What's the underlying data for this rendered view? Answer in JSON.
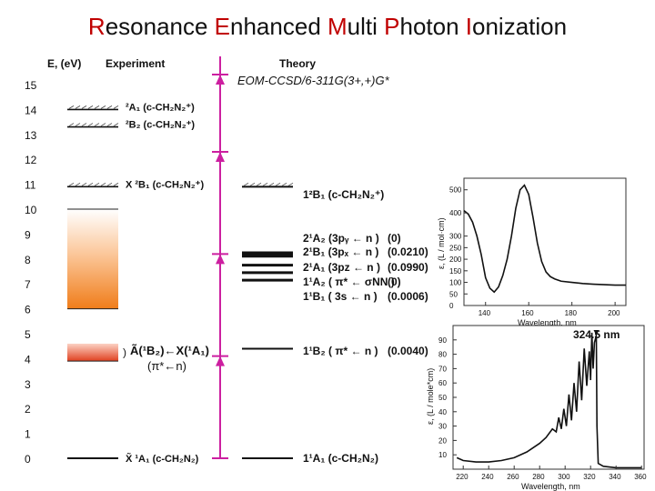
{
  "title": {
    "words": [
      {
        "cap": "R",
        "rest": "esonance "
      },
      {
        "cap": "E",
        "rest": "nhanced "
      },
      {
        "cap": "M",
        "rest": "ulti "
      },
      {
        "cap": "P",
        "rest": "hoton "
      },
      {
        "cap": "I",
        "rest": "onization"
      }
    ],
    "cap_color": "#c00000"
  },
  "axis": {
    "label": "E, (eV)",
    "ticks": [
      "0",
      "1",
      "2",
      "3",
      "4",
      "5",
      "6",
      "7",
      "8",
      "9",
      "10",
      "11",
      "12",
      "13",
      "14",
      "15"
    ]
  },
  "experiment": {
    "header": "Experiment",
    "states": [
      {
        "label": "²A₁ (c-CH₂N₂⁺)",
        "energy": 14.0,
        "dashed": true
      },
      {
        "label": "²B₂ (c-CH₂N₂⁺)",
        "energy": 13.3,
        "dashed": true
      },
      {
        "label": "X ²B₁ (c-CH₂N₂⁺)",
        "energy": 10.9,
        "dashed": true
      },
      {
        "label": "X̃ ¹A₁ (c-CH₂N₂)",
        "energy": 0.0,
        "dashed": false
      }
    ],
    "band_upper": {
      "from": 6.0,
      "to": 10.0,
      "color": "#f07d1a"
    },
    "band_lower": {
      "from": 3.9,
      "to": 4.6,
      "color": "#e04020"
    },
    "transition_label_1": "Ã(¹B₂)←X(¹A₁)",
    "transition_label_2": "(π*←n)"
  },
  "photon_arrows": {
    "color": "#cc1fa0",
    "steps": [
      0,
      4.1,
      8.2,
      12.3,
      15.4
    ]
  },
  "theory": {
    "header": "Theory",
    "method": "EOM-CCSD/6-311G(3+,+)G*",
    "states": [
      {
        "label": "1²B₁ (c-CH₂N₂⁺)",
        "energy": 10.9,
        "osc": "",
        "dashed": true
      },
      {
        "label": "2¹A₂ (3p — n)",
        "energy": 8.25,
        "osc": "(0)",
        "dashed": false
      },
      {
        "label": "2¹B₁ (3p — n)",
        "energy": 8.15,
        "osc": "(0.0210);",
        "dashed": false
      },
      {
        "label": "2¹A₁ (3p — n)",
        "energy": 7.75,
        "osc": "(0.0990);",
        "dashed": false
      },
      {
        "label": "1¹A₂ (π* — σNN)",
        "energy": 7.45,
        "osc": "(0)",
        "dashed": false
      },
      {
        "label": "1¹B₁ (3s — n)",
        "energy": 7.15,
        "osc": "(0.0006);",
        "dashed": false
      },
      {
        "label": "1¹B₂ (π* ← n)",
        "energy": 4.4,
        "osc": "(0.0040)",
        "dashed": false
      },
      {
        "label": "1¹A₁ (c-CH₂N₂)",
        "energy": 0.0,
        "osc": "",
        "dashed": false
      }
    ],
    "row_labels": [
      {
        "state": "1²B₁ (c-CH₂N₂⁺)",
        "osc": ""
      },
      {
        "state": "2¹A₂ (3pᵧ ← n )",
        "osc": "(0)"
      },
      {
        "state": "2¹B₁ (3pₓ ← n )",
        "osc": "(0.0210)"
      },
      {
        "state": "2¹A₁ (3pz ← n )",
        "osc": "(0.0990)"
      },
      {
        "state": "1¹A₂ ( π* ← σNN )",
        "osc": "(0)"
      },
      {
        "state": "1¹B₁ ( 3s ← n )",
        "osc": "(0.0006)"
      },
      {
        "state": "1¹B₂ ( π* ← n )",
        "osc": "(0.0040)"
      },
      {
        "state": "1¹A₁ (c-CH₂N₂)",
        "osc": ""
      }
    ]
  },
  "spectrum_top": {
    "xlabel": "Wavelength, nm",
    "ylabel": "ε, (L / mol·cm)",
    "xticks": [
      "140",
      "160",
      "180",
      "200"
    ],
    "yticks": [
      "0",
      "50",
      "100",
      "150",
      "200",
      "250",
      "300",
      "400",
      "500"
    ],
    "curve": [
      [
        130,
        410
      ],
      [
        132,
        395
      ],
      [
        134,
        360
      ],
      [
        136,
        300
      ],
      [
        138,
        220
      ],
      [
        140,
        120
      ],
      [
        142,
        75
      ],
      [
        144,
        58
      ],
      [
        146,
        80
      ],
      [
        148,
        130
      ],
      [
        150,
        200
      ],
      [
        152,
        300
      ],
      [
        154,
        420
      ],
      [
        156,
        500
      ],
      [
        158,
        520
      ],
      [
        160,
        480
      ],
      [
        162,
        380
      ],
      [
        164,
        270
      ],
      [
        166,
        190
      ],
      [
        168,
        145
      ],
      [
        170,
        125
      ],
      [
        172,
        115
      ],
      [
        175,
        105
      ],
      [
        180,
        100
      ],
      [
        185,
        95
      ],
      [
        190,
        92
      ],
      [
        195,
        90
      ],
      [
        200,
        88
      ],
      [
        205,
        88
      ]
    ]
  },
  "spectrum_bottom": {
    "xlabel": "Wavelength, nm",
    "ylabel": "ε, (L / mole*cm)",
    "xticks": [
      "220",
      "240",
      "260",
      "280",
      "300",
      "320",
      "340",
      "360"
    ],
    "yticks": [
      "10",
      "20",
      "30",
      "40",
      "50",
      "60",
      "70",
      "80",
      "90"
    ],
    "peak_label": "324.5 nm",
    "curve": [
      [
        215,
        8
      ],
      [
        220,
        6
      ],
      [
        230,
        5
      ],
      [
        240,
        5
      ],
      [
        250,
        6
      ],
      [
        260,
        8
      ],
      [
        270,
        12
      ],
      [
        280,
        18
      ],
      [
        285,
        22
      ],
      [
        290,
        28
      ],
      [
        293,
        26
      ],
      [
        295,
        36
      ],
      [
        297,
        28
      ],
      [
        299,
        42
      ],
      [
        301,
        30
      ],
      [
        303,
        52
      ],
      [
        305,
        34
      ],
      [
        307,
        60
      ],
      [
        309,
        40
      ],
      [
        311,
        75
      ],
      [
        313,
        48
      ],
      [
        315,
        84
      ],
      [
        317,
        58
      ],
      [
        319,
        82
      ],
      [
        320,
        62
      ],
      [
        321,
        95
      ],
      [
        322,
        70
      ],
      [
        323,
        88
      ],
      [
        324.5,
        93
      ],
      [
        325,
        30
      ],
      [
        326,
        4
      ],
      [
        330,
        2
      ],
      [
        340,
        1
      ],
      [
        350,
        1
      ],
      [
        360,
        1
      ]
    ]
  }
}
